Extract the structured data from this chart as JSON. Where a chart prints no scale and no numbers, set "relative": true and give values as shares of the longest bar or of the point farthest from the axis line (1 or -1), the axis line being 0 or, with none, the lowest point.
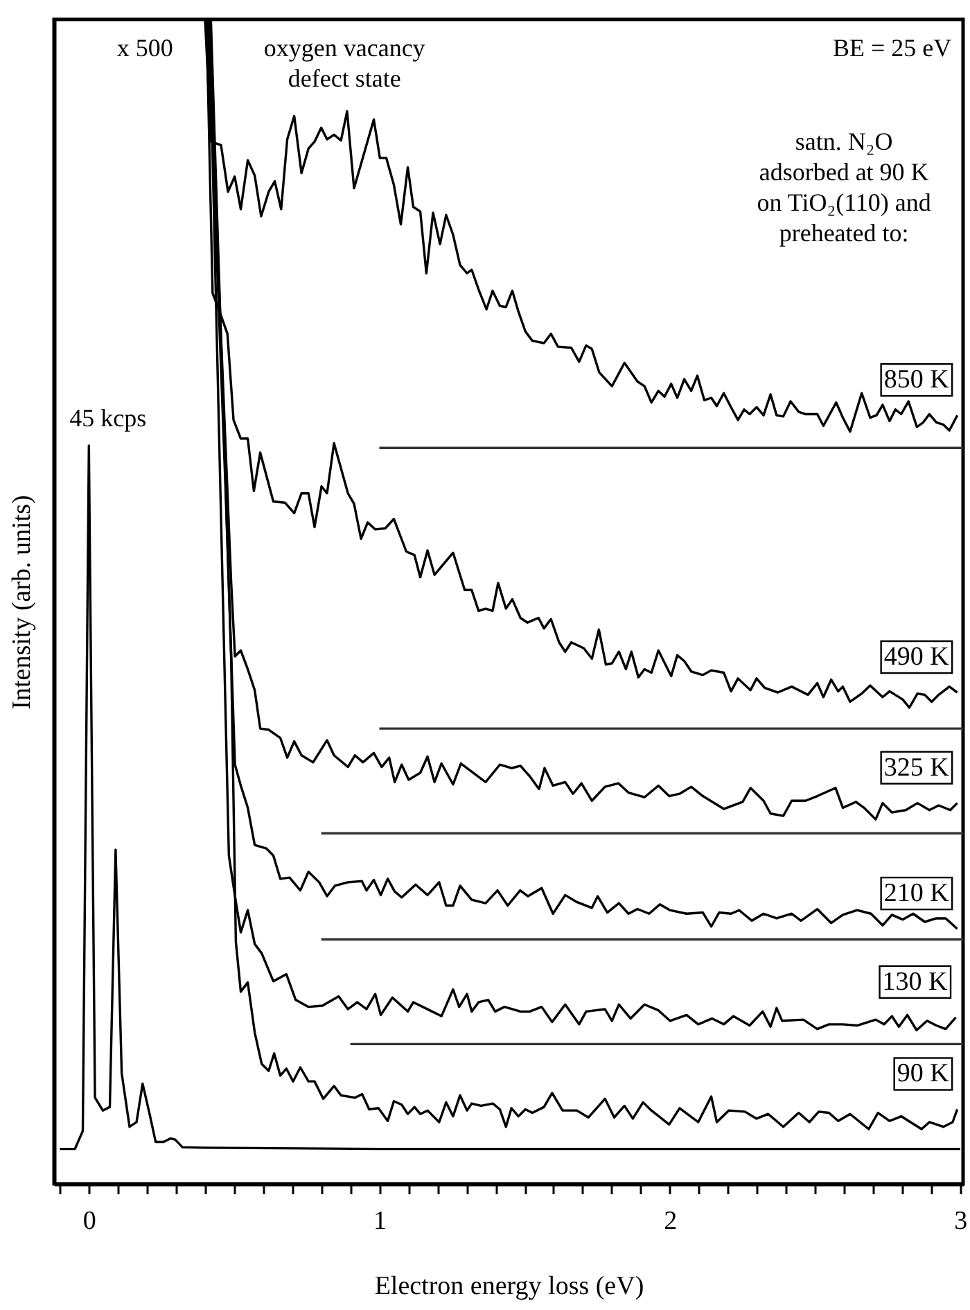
{
  "chart_data": {
    "type": "line",
    "relative": true,
    "xlabel": "Electron energy loss (eV)",
    "ylabel": "Intensity (arb. units)",
    "xlim": [
      -0.12,
      3.01
    ],
    "xticks": [
      {
        "value": -0.1,
        "label": null
      },
      0,
      {
        "value": 0.1,
        "label": null
      },
      {
        "value": 0.2,
        "label": null
      },
      {
        "value": 0.3,
        "label": null
      },
      {
        "value": 0.4,
        "label": null
      },
      {
        "value": 0.5,
        "label": null
      },
      {
        "value": 0.6,
        "label": null
      },
      {
        "value": 0.7,
        "label": null
      },
      {
        "value": 0.8,
        "label": null
      },
      {
        "value": 0.9,
        "label": null
      },
      1,
      {
        "value": 1.1,
        "label": null
      },
      {
        "value": 1.2,
        "label": null
      },
      {
        "value": 1.3,
        "label": null
      },
      {
        "value": 1.4,
        "label": null
      },
      {
        "value": 1.5,
        "label": null
      },
      {
        "value": 1.6,
        "label": null
      },
      {
        "value": 1.7,
        "label": null
      },
      {
        "value": 1.8,
        "label": null
      },
      {
        "value": 1.9,
        "label": null
      },
      2,
      {
        "value": 2.1,
        "label": null
      },
      {
        "value": 2.2,
        "label": null
      },
      {
        "value": 2.3,
        "label": null
      },
      {
        "value": 2.4,
        "label": null
      },
      {
        "value": 2.5,
        "label": null
      },
      {
        "value": 2.6,
        "label": null
      },
      {
        "value": 2.7,
        "label": null
      },
      {
        "value": 2.8,
        "label": null
      },
      {
        "value": 2.9,
        "label": null
      },
      3
    ],
    "grid": false,
    "legend": false,
    "annotations": [
      "x 500",
      "oxygen vacancy\ndefect state",
      "BE = 25 eV",
      "satn. N₂O\nadsorbed at 90 K\non TiO₂(110) and\npreheated to:",
      {
        "text": "45 kcps",
        "x": 0,
        "y": 0.634
      }
    ],
    "series": [
      {
        "color": "#000000",
        "x": [
          -0.1,
          -0.048,
          -0.021,
          0,
          0.021,
          0.048,
          0.072,
          0.092,
          0.113,
          0.14,
          0.164,
          0.185,
          0.209,
          0.23,
          0.257,
          0.281,
          0.297,
          0.322,
          0.394,
          1.0,
          2.0,
          3.0
        ],
        "values": [
          0.03,
          0.03,
          0.0455,
          0.634,
          0.074,
          0.063,
          0.066,
          0.287,
          0.095,
          0.049,
          0.053,
          0.086,
          0.06,
          0.036,
          0.036,
          0.039,
          0.038,
          0.0315,
          0.031,
          0.03,
          0.03,
          0.03
        ]
      },
      {
        "name": "850 K",
        "color": "#000000",
        "x": [
          0.4,
          0.421,
          0.455,
          0.479,
          0.502,
          0.523,
          0.547,
          0.571,
          0.593,
          0.619,
          0.64,
          0.662,
          0.683,
          0.707,
          0.732,
          0.756,
          0.777,
          0.8,
          0.82,
          0.844,
          0.868,
          0.889,
          0.913,
          0.981,
          1.002,
          1.024,
          1.05,
          1.074,
          1.098,
          1.117,
          1.141,
          1.162,
          1.185,
          1.209,
          1.23,
          1.254,
          1.278,
          1.302,
          1.318,
          1.342,
          1.369,
          1.39,
          1.415,
          1.436,
          1.458,
          1.479,
          1.503,
          1.527,
          1.567,
          1.591,
          1.615,
          1.661,
          1.688,
          1.712,
          1.732,
          1.757,
          1.801,
          1.844,
          1.889,
          1.913,
          1.937,
          1.961,
          1.982,
          2.005,
          2.026,
          2.05,
          2.074,
          2.095,
          2.119,
          2.143,
          2.162,
          2.186,
          2.211,
          2.235,
          2.256,
          2.275,
          2.299,
          2.323,
          2.347,
          2.368,
          2.391,
          2.416,
          2.444,
          2.468,
          2.508,
          2.529,
          2.573,
          2.596,
          2.621,
          2.661,
          2.69,
          2.712,
          2.733,
          2.757,
          2.777,
          2.797,
          2.822,
          2.851,
          2.873,
          2.894,
          2.918,
          2.942,
          2.963,
          2.99
        ],
        "values": [
          1.0,
          0.895,
          0.892,
          0.852,
          0.865,
          0.837,
          0.879,
          0.866,
          0.831,
          0.852,
          0.861,
          0.837,
          0.897,
          0.917,
          0.868,
          0.889,
          0.895,
          0.907,
          0.897,
          0.901,
          0.896,
          0.921,
          0.855,
          0.914,
          0.881,
          0.881,
          0.858,
          0.824,
          0.873,
          0.839,
          0.835,
          0.782,
          0.834,
          0.807,
          0.832,
          0.815,
          0.789,
          0.782,
          0.785,
          0.768,
          0.751,
          0.767,
          0.754,
          0.753,
          0.767,
          0.749,
          0.732,
          0.724,
          0.722,
          0.73,
          0.719,
          0.718,
          0.706,
          0.72,
          0.717,
          0.697,
          0.685,
          0.705,
          0.689,
          0.685,
          0.671,
          0.681,
          0.676,
          0.687,
          0.675,
          0.691,
          0.681,
          0.694,
          0.673,
          0.675,
          0.668,
          0.679,
          0.667,
          0.656,
          0.665,
          0.661,
          0.667,
          0.66,
          0.678,
          0.66,
          0.659,
          0.672,
          0.663,
          0.661,
          0.661,
          0.651,
          0.671,
          0.658,
          0.646,
          0.679,
          0.658,
          0.66,
          0.669,
          0.655,
          0.665,
          0.661,
          0.672,
          0.65,
          0.654,
          0.661,
          0.654,
          0.652,
          0.647,
          0.66
        ]
      },
      {
        "name": "490 K",
        "color": "#000000",
        "x": [
          0.405,
          0.426,
          0.45,
          0.477,
          0.498,
          0.523,
          0.547,
          0.568,
          0.59,
          0.635,
          0.675,
          0.707,
          0.732,
          0.756,
          0.777,
          0.801,
          0.82,
          0.844,
          0.892,
          0.913,
          0.937,
          0.96,
          0.986,
          1.021,
          1.05,
          1.093,
          1.121,
          1.141,
          1.166,
          1.19,
          1.254,
          1.294,
          1.318,
          1.342,
          1.366,
          1.39,
          1.409,
          1.436,
          1.458,
          1.486,
          1.51,
          1.548,
          1.567,
          1.591,
          1.619,
          1.64,
          1.661,
          1.704,
          1.732,
          1.756,
          1.78,
          1.801,
          1.825,
          1.849,
          1.868,
          1.892,
          1.913,
          1.937,
          1.961,
          2.005,
          2.026,
          2.05,
          2.074,
          2.114,
          2.143,
          2.186,
          2.211,
          2.235,
          2.278,
          2.299,
          2.327,
          2.372,
          2.42,
          2.476,
          2.508,
          2.529,
          2.556,
          2.58,
          2.596,
          2.621,
          2.661,
          2.69,
          2.733,
          2.757,
          2.802,
          2.825,
          2.853,
          2.878,
          2.902,
          2.926,
          2.963,
          2.99
        ],
        "values": [
          1.0,
          0.765,
          0.749,
          0.73,
          0.656,
          0.64,
          0.64,
          0.595,
          0.628,
          0.586,
          0.585,
          0.576,
          0.593,
          0.593,
          0.564,
          0.599,
          0.593,
          0.636,
          0.593,
          0.584,
          0.554,
          0.568,
          0.562,
          0.563,
          0.571,
          0.543,
          0.54,
          0.521,
          0.544,
          0.523,
          0.542,
          0.51,
          0.51,
          0.492,
          0.494,
          0.492,
          0.516,
          0.494,
          0.502,
          0.486,
          0.482,
          0.486,
          0.477,
          0.485,
          0.465,
          0.457,
          0.465,
          0.46,
          0.451,
          0.476,
          0.446,
          0.447,
          0.457,
          0.442,
          0.457,
          0.435,
          0.442,
          0.439,
          0.458,
          0.436,
          0.454,
          0.449,
          0.44,
          0.437,
          0.441,
          0.439,
          0.423,
          0.434,
          0.424,
          0.434,
          0.426,
          0.422,
          0.427,
          0.42,
          0.43,
          0.418,
          0.433,
          0.423,
          0.427,
          0.414,
          0.421,
          0.428,
          0.418,
          0.423,
          0.416,
          0.409,
          0.421,
          0.42,
          0.414,
          0.42,
          0.427,
          0.422
        ]
      },
      {
        "name": "325 K",
        "color": "#000000",
        "x": [
          0.41,
          0.49,
          0.503,
          0.523,
          0.547,
          0.571,
          0.59,
          0.619,
          0.659,
          0.683,
          0.707,
          0.732,
          0.772,
          0.82,
          0.844,
          0.892,
          0.916,
          0.944,
          0.981,
          1.008,
          1.034,
          1.053,
          1.077,
          1.101,
          1.141,
          1.166,
          1.19,
          1.214,
          1.254,
          1.281,
          1.366,
          1.415,
          1.455,
          1.486,
          1.518,
          1.55,
          1.569,
          1.598,
          1.64,
          1.667,
          1.696,
          1.732,
          1.777,
          1.823,
          1.858,
          1.913,
          1.961,
          1.998,
          2.034,
          2.074,
          2.114,
          2.186,
          2.251,
          2.278,
          2.323,
          2.347,
          2.391,
          2.42,
          2.468,
          2.508,
          2.571,
          2.596,
          2.641,
          2.669,
          2.709,
          2.733,
          2.765,
          2.813,
          2.853,
          2.894,
          2.926,
          2.966,
          2.99
        ],
        "values": [
          1.0,
          0.516,
          0.453,
          0.458,
          0.442,
          0.424,
          0.391,
          0.39,
          0.383,
          0.366,
          0.38,
          0.368,
          0.362,
          0.381,
          0.368,
          0.358,
          0.368,
          0.362,
          0.37,
          0.358,
          0.366,
          0.345,
          0.36,
          0.347,
          0.353,
          0.367,
          0.345,
          0.361,
          0.343,
          0.361,
          0.345,
          0.36,
          0.357,
          0.359,
          0.35,
          0.339,
          0.357,
          0.342,
          0.345,
          0.335,
          0.344,
          0.329,
          0.341,
          0.344,
          0.336,
          0.332,
          0.342,
          0.333,
          0.335,
          0.341,
          0.333,
          0.322,
          0.328,
          0.34,
          0.329,
          0.318,
          0.316,
          0.329,
          0.329,
          0.333,
          0.34,
          0.323,
          0.328,
          0.323,
          0.313,
          0.327,
          0.319,
          0.321,
          0.327,
          0.321,
          0.325,
          0.321,
          0.327
        ]
      },
      {
        "name": "210 K",
        "color": "#000000",
        "x": [
          0.41,
          0.47,
          0.503,
          0.523,
          0.547,
          0.571,
          0.611,
          0.635,
          0.659,
          0.691,
          0.728,
          0.756,
          0.793,
          0.82,
          0.847,
          0.892,
          0.94,
          0.956,
          0.981,
          1.005,
          1.029,
          1.053,
          1.077,
          1.125,
          1.166,
          1.206,
          1.23,
          1.254,
          1.278,
          1.318,
          1.366,
          1.407,
          1.442,
          1.485,
          1.512,
          1.559,
          1.598,
          1.64,
          1.68,
          1.732,
          1.752,
          1.785,
          1.825,
          1.858,
          1.889,
          1.929,
          1.966,
          2.001,
          2.058,
          2.114,
          2.143,
          2.17,
          2.211,
          2.239,
          2.283,
          2.323,
          2.368,
          2.42,
          2.452,
          2.508,
          2.556,
          2.596,
          2.645,
          2.693,
          2.733,
          2.765,
          2.802,
          2.838,
          2.878,
          2.918,
          2.95,
          2.99
        ],
        "values": [
          1.0,
          0.6,
          0.36,
          0.342,
          0.323,
          0.291,
          0.288,
          0.282,
          0.262,
          0.263,
          0.252,
          0.268,
          0.259,
          0.247,
          0.256,
          0.259,
          0.26,
          0.252,
          0.261,
          0.248,
          0.262,
          0.251,
          0.246,
          0.257,
          0.248,
          0.259,
          0.239,
          0.239,
          0.256,
          0.244,
          0.241,
          0.252,
          0.239,
          0.252,
          0.247,
          0.254,
          0.232,
          0.248,
          0.242,
          0.237,
          0.247,
          0.233,
          0.241,
          0.232,
          0.236,
          0.232,
          0.24,
          0.235,
          0.232,
          0.233,
          0.221,
          0.233,
          0.232,
          0.235,
          0.226,
          0.232,
          0.228,
          0.232,
          0.226,
          0.236,
          0.224,
          0.231,
          0.235,
          0.232,
          0.222,
          0.231,
          0.227,
          0.232,
          0.225,
          0.228,
          0.228,
          0.219
        ]
      },
      {
        "name": "130 K",
        "color": "#000000",
        "x": [
          0.415,
          0.482,
          0.503,
          0.523,
          0.547,
          0.571,
          0.595,
          0.635,
          0.68,
          0.712,
          0.756,
          0.804,
          0.86,
          0.892,
          0.924,
          0.956,
          0.986,
          1.005,
          1.045,
          1.098,
          1.117,
          1.182,
          1.214,
          1.254,
          1.275,
          1.302,
          1.318,
          1.342,
          1.375,
          1.399,
          1.431,
          1.486,
          1.518,
          1.559,
          1.595,
          1.64,
          1.688,
          1.712,
          1.777,
          1.801,
          1.825,
          1.865,
          1.913,
          1.961,
          2.001,
          2.058,
          2.098,
          2.146,
          2.186,
          2.219,
          2.275,
          2.32,
          2.347,
          2.368,
          2.387,
          2.46,
          2.508,
          2.548,
          2.596,
          2.645,
          2.709,
          2.738,
          2.765,
          2.789,
          2.818,
          2.85,
          2.886,
          2.918,
          2.95,
          2.985
        ],
        "values": [
          1.0,
          0.282,
          0.247,
          0.216,
          0.235,
          0.206,
          0.198,
          0.174,
          0.18,
          0.158,
          0.152,
          0.153,
          0.161,
          0.15,
          0.156,
          0.15,
          0.163,
          0.145,
          0.16,
          0.148,
          0.156,
          0.148,
          0.144,
          0.167,
          0.152,
          0.163,
          0.148,
          0.156,
          0.158,
          0.148,
          0.152,
          0.148,
          0.148,
          0.152,
          0.139,
          0.154,
          0.137,
          0.148,
          0.15,
          0.14,
          0.154,
          0.142,
          0.154,
          0.149,
          0.14,
          0.145,
          0.137,
          0.142,
          0.137,
          0.144,
          0.136,
          0.148,
          0.135,
          0.151,
          0.14,
          0.141,
          0.133,
          0.137,
          0.137,
          0.136,
          0.141,
          0.137,
          0.144,
          0.135,
          0.145,
          0.132,
          0.14,
          0.136,
          0.133,
          0.143
        ]
      },
      {
        "name": "90 K",
        "color": "#000000",
        "x": [
          0.42,
          0.49,
          0.506,
          0.523,
          0.547,
          0.571,
          0.595,
          0.619,
          0.638,
          0.659,
          0.68,
          0.703,
          0.728,
          0.756,
          0.777,
          0.807,
          0.844,
          0.868,
          0.916,
          0.941,
          0.965,
          0.997,
          1.029,
          1.05,
          1.077,
          1.098,
          1.121,
          1.141,
          1.166,
          1.206,
          1.23,
          1.254,
          1.278,
          1.302,
          1.318,
          1.35,
          1.391,
          1.415,
          1.436,
          1.455,
          1.479,
          1.503,
          1.527,
          1.567,
          1.595,
          1.631,
          1.68,
          1.72,
          1.777,
          1.809,
          1.844,
          1.873,
          1.908,
          1.937,
          1.998,
          2.034,
          2.098,
          2.143,
          2.162,
          2.203,
          2.259,
          2.299,
          2.339,
          2.391,
          2.444,
          2.481,
          2.513,
          2.548,
          2.58,
          2.621,
          2.685,
          2.717,
          2.757,
          2.797,
          2.867,
          2.894,
          2.942,
          2.974,
          2.99
        ],
        "values": [
          1.0,
          0.45,
          0.208,
          0.165,
          0.173,
          0.13,
          0.103,
          0.097,
          0.112,
          0.093,
          0.099,
          0.088,
          0.1,
          0.088,
          0.088,
          0.073,
          0.084,
          0.076,
          0.074,
          0.077,
          0.064,
          0.065,
          0.054,
          0.071,
          0.068,
          0.06,
          0.066,
          0.06,
          0.063,
          0.053,
          0.07,
          0.058,
          0.076,
          0.063,
          0.069,
          0.067,
          0.069,
          0.064,
          0.049,
          0.065,
          0.058,
          0.064,
          0.061,
          0.066,
          0.078,
          0.063,
          0.063,
          0.057,
          0.073,
          0.057,
          0.067,
          0.056,
          0.07,
          0.063,
          0.051,
          0.065,
          0.053,
          0.075,
          0.053,
          0.063,
          0.062,
          0.056,
          0.06,
          0.049,
          0.061,
          0.053,
          0.062,
          0.061,
          0.054,
          0.06,
          0.047,
          0.061,
          0.054,
          0.058,
          0.047,
          0.053,
          0.049,
          0.053,
          0.064
        ]
      },
      {
        "color": "#333333",
        "x": [
          1.0,
          3.01
        ],
        "values": [
          0.632,
          0.632
        ]
      },
      {
        "color": "#333333",
        "x": [
          1.0,
          3.01
        ],
        "values": [
          0.391,
          0.391
        ]
      },
      {
        "color": "#333333",
        "x": [
          0.8,
          3.01
        ],
        "values": [
          0.301,
          0.301
        ]
      },
      {
        "color": "#333333",
        "x": [
          0.8,
          3.01
        ],
        "values": [
          0.21,
          0.21
        ]
      },
      {
        "color": "#333333",
        "x": [
          0.9,
          3.01
        ],
        "values": [
          0.12,
          0.12
        ]
      }
    ]
  }
}
